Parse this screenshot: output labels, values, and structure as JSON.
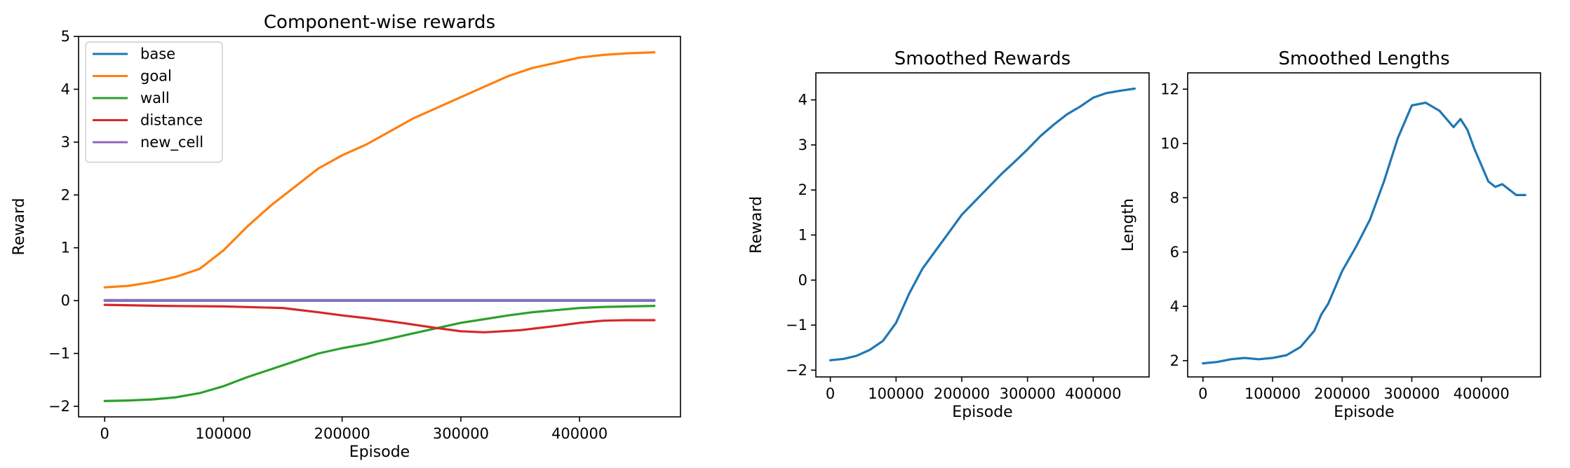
{
  "chart_data": [
    {
      "type": "line",
      "title": "Component-wise rewards",
      "xlabel": "Episode",
      "ylabel": "Reward",
      "xlim": [
        -22000,
        485000
      ],
      "ylim": [
        -2.2,
        5.0
      ],
      "xticks": [
        0,
        100000,
        200000,
        300000,
        400000
      ],
      "yticks": [
        -2,
        -1,
        0,
        1,
        2,
        3,
        4,
        5
      ],
      "legend": "top-left",
      "series": [
        {
          "name": "base",
          "color": "#1f77b4",
          "x": [
            0,
            100000,
            200000,
            300000,
            400000,
            463000
          ],
          "y": [
            0,
            0,
            0,
            0,
            0,
            0
          ]
        },
        {
          "name": "goal",
          "color": "#ff7f0e",
          "x": [
            0,
            20000,
            40000,
            60000,
            80000,
            100000,
            120000,
            140000,
            160000,
            180000,
            200000,
            220000,
            240000,
            260000,
            280000,
            300000,
            320000,
            340000,
            360000,
            380000,
            400000,
            420000,
            440000,
            463000
          ],
          "y": [
            0.25,
            0.28,
            0.35,
            0.45,
            0.6,
            0.95,
            1.4,
            1.8,
            2.15,
            2.5,
            2.75,
            2.95,
            3.2,
            3.45,
            3.65,
            3.85,
            4.05,
            4.25,
            4.4,
            4.5,
            4.6,
            4.65,
            4.68,
            4.7
          ]
        },
        {
          "name": "wall",
          "color": "#2ca02c",
          "x": [
            0,
            20000,
            40000,
            60000,
            80000,
            100000,
            120000,
            140000,
            160000,
            180000,
            200000,
            220000,
            240000,
            260000,
            280000,
            300000,
            320000,
            340000,
            360000,
            380000,
            400000,
            420000,
            440000,
            463000
          ],
          "y": [
            -1.9,
            -1.89,
            -1.87,
            -1.83,
            -1.75,
            -1.62,
            -1.45,
            -1.3,
            -1.15,
            -1.0,
            -0.9,
            -0.82,
            -0.72,
            -0.62,
            -0.52,
            -0.42,
            -0.35,
            -0.28,
            -0.22,
            -0.18,
            -0.14,
            -0.12,
            -0.11,
            -0.1
          ]
        },
        {
          "name": "distance",
          "color": "#d62728",
          "x": [
            0,
            50000,
            100000,
            150000,
            180000,
            200000,
            220000,
            250000,
            280000,
            300000,
            320000,
            350000,
            380000,
            400000,
            420000,
            440000,
            463000
          ],
          "y": [
            -0.08,
            -0.1,
            -0.11,
            -0.14,
            -0.22,
            -0.28,
            -0.33,
            -0.42,
            -0.52,
            -0.58,
            -0.6,
            -0.56,
            -0.48,
            -0.42,
            -0.38,
            -0.37,
            -0.37
          ]
        },
        {
          "name": "new_cell",
          "color": "#9467bd",
          "x": [
            0,
            100000,
            200000,
            300000,
            400000,
            463000
          ],
          "y": [
            0.01,
            0.01,
            0.01,
            0.01,
            0.01,
            0.01
          ]
        }
      ]
    },
    {
      "type": "line",
      "title": "Smoothed Rewards",
      "xlabel": "Episode",
      "ylabel": "Reward",
      "xlim": [
        -22000,
        485000
      ],
      "ylim": [
        -2.15,
        4.6
      ],
      "xticks": [
        0,
        100000,
        200000,
        300000,
        400000
      ],
      "yticks": [
        -2,
        -1,
        0,
        1,
        2,
        3,
        4
      ],
      "series": [
        {
          "color": "#1f77b4",
          "x": [
            0,
            20000,
            40000,
            60000,
            80000,
            100000,
            120000,
            140000,
            160000,
            180000,
            200000,
            220000,
            240000,
            260000,
            280000,
            300000,
            320000,
            340000,
            360000,
            380000,
            400000,
            420000,
            440000,
            463000
          ],
          "y": [
            -1.78,
            -1.75,
            -1.68,
            -1.55,
            -1.35,
            -0.95,
            -0.3,
            0.25,
            0.65,
            1.05,
            1.45,
            1.75,
            2.05,
            2.35,
            2.62,
            2.9,
            3.2,
            3.45,
            3.68,
            3.85,
            4.05,
            4.15,
            4.2,
            4.25
          ]
        }
      ]
    },
    {
      "type": "line",
      "title": "Smoothed Lengths",
      "xlabel": "Episode",
      "ylabel": "Length",
      "xlim": [
        -22000,
        485000
      ],
      "ylim": [
        1.4,
        12.6
      ],
      "xticks": [
        0,
        100000,
        200000,
        300000,
        400000
      ],
      "yticks": [
        2,
        4,
        6,
        8,
        10,
        12
      ],
      "series": [
        {
          "color": "#1f77b4",
          "x": [
            0,
            20000,
            40000,
            60000,
            80000,
            100000,
            120000,
            140000,
            160000,
            170000,
            180000,
            200000,
            220000,
            240000,
            260000,
            280000,
            300000,
            320000,
            340000,
            360000,
            370000,
            380000,
            390000,
            400000,
            410000,
            420000,
            430000,
            440000,
            450000,
            463000
          ],
          "y": [
            1.9,
            1.95,
            2.05,
            2.1,
            2.05,
            2.1,
            2.2,
            2.5,
            3.1,
            3.7,
            4.1,
            5.3,
            6.2,
            7.2,
            8.6,
            10.2,
            11.4,
            11.5,
            11.2,
            10.6,
            10.9,
            10.5,
            9.8,
            9.2,
            8.6,
            8.4,
            8.5,
            8.3,
            8.1,
            8.1
          ]
        }
      ]
    }
  ]
}
